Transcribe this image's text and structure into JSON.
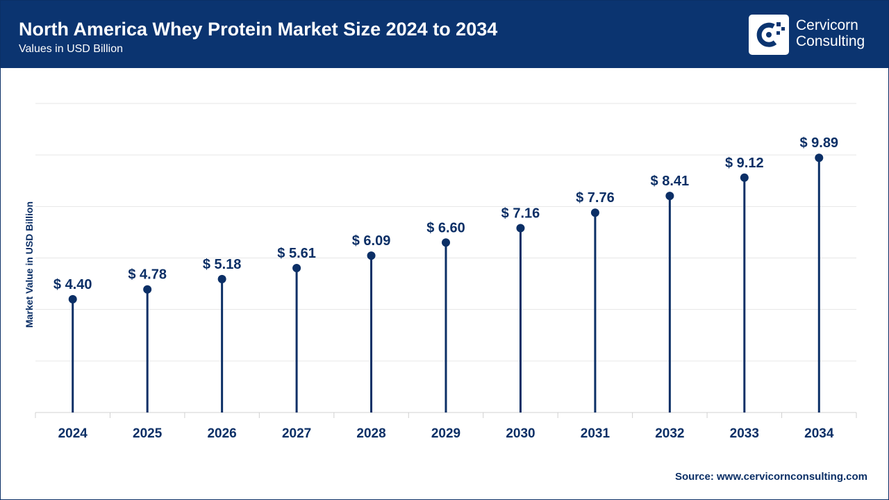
{
  "header": {
    "title": "North America Whey Protein Market Size 2024 to 2034",
    "subtitle": "Values in USD Billion"
  },
  "logo": {
    "line1": "Cervicorn",
    "line2": "Consulting",
    "icon": "cervicorn-logo-icon"
  },
  "source": "Source: www.cervicornconsulting.com",
  "colors": {
    "header_bg": "#0b3470",
    "series": "#0b2f66",
    "grid": "#e6e6e6"
  },
  "chart_data": {
    "type": "lollipop",
    "title": "North America Whey Protein Market Size 2024 to 2034",
    "subtitle": "Values in USD Billion",
    "ylabel": "Market Value in USD Billion",
    "xlabel": "",
    "categories": [
      "2024",
      "2025",
      "2026",
      "2027",
      "2028",
      "2029",
      "2030",
      "2031",
      "2032",
      "2033",
      "2034"
    ],
    "values": [
      4.4,
      4.78,
      5.18,
      5.61,
      6.09,
      6.6,
      7.16,
      7.76,
      8.41,
      9.12,
      9.89
    ],
    "data_labels": [
      "$ 4.40",
      "$ 4.78",
      "$ 5.18",
      "$ 5.61",
      "$ 6.09",
      "$ 6.60",
      "$ 7.16",
      "$ 7.76",
      "$ 8.41",
      "$ 9.12",
      "$ 9.89"
    ],
    "ylim": [
      0,
      12
    ],
    "grid": true,
    "y_tick_labels_visible": false,
    "legend": "none"
  }
}
